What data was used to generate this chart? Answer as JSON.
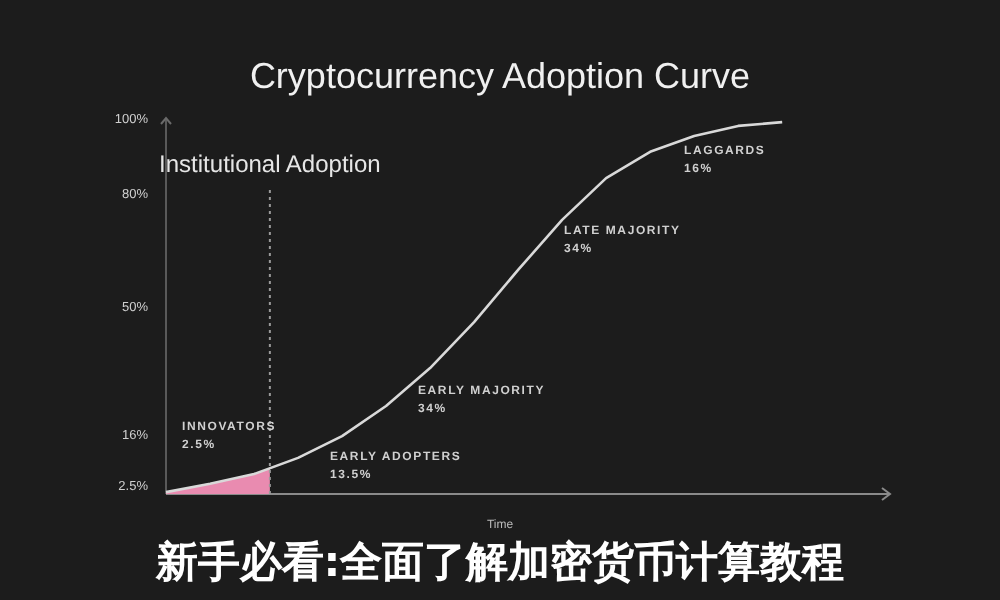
{
  "chart_data": {
    "type": "line",
    "title": "Cryptocurrency Adoption Curve",
    "xlabel": "Time",
    "tick_labels": "y",
    "grid": false,
    "marker": "none",
    "line_style": "solid",
    "categories": [
      null,
      null,
      null,
      null,
      null,
      null,
      null,
      null,
      null,
      null,
      null,
      null,
      null,
      null,
      null
    ],
    "ylim": [
      0,
      100
    ],
    "yticks": [
      {
        "value": 2.5,
        "label": "2.5%"
      },
      {
        "value": 16,
        "label": "16%"
      },
      {
        "value": 50,
        "label": "50%"
      },
      {
        "value": 80,
        "label": "80%"
      },
      {
        "value": 100,
        "label": "100%"
      }
    ],
    "series": [
      {
        "color": "#d9d9d9",
        "values": [
          0.5,
          2.7,
          5.3,
          9.6,
          15.4,
          23.4,
          33.5,
          45.7,
          59.6,
          72.9,
          84.0,
          91.0,
          95.2,
          97.9,
          98.9
        ]
      }
    ],
    "annotations": [
      "Institutional Adoption",
      "INNOVATORS\n2.5%",
      "EARLY ADOPTERS\n13.5%",
      "EARLY MAJORITY\n34%",
      "LATE MAJORITY\n34%",
      "LAGGARDS\n16%",
      "新手必看:全面了解加密货币计算教程"
    ]
  }
}
